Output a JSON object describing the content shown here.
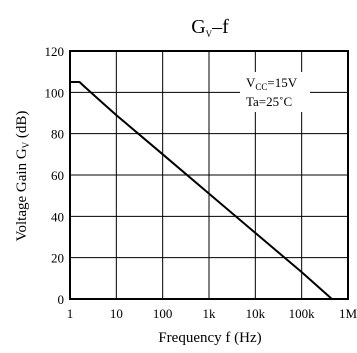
{
  "chart_data": {
    "type": "line",
    "title": {
      "main": "G",
      "sub": "V",
      "rest": "–f"
    },
    "xlabel": "Frequency  f (Hz)",
    "ylabel": {
      "pre": "Voltage Gain  G",
      "sub": "V",
      "post": " (dB)"
    },
    "x_scale": "log",
    "xlim": [
      1,
      1000000
    ],
    "ylim": [
      0,
      120
    ],
    "x_ticks": [
      {
        "value": 1,
        "label": "1"
      },
      {
        "value": 10,
        "label": "10"
      },
      {
        "value": 100,
        "label": "100"
      },
      {
        "value": 1000,
        "label": "1k"
      },
      {
        "value": 10000,
        "label": "10k"
      },
      {
        "value": 100000,
        "label": "100k"
      },
      {
        "value": 1000000,
        "label": "1M"
      }
    ],
    "y_ticks": [
      0,
      20,
      40,
      60,
      80,
      100,
      120
    ],
    "grid": true,
    "annotations": [
      {
        "pre": "V",
        "sub": "CC",
        "post": "=15V"
      },
      {
        "pre": "Ta=25˚C",
        "sub": "",
        "post": ""
      }
    ],
    "series": [
      {
        "x": [
          1,
          1.6,
          2,
          5,
          10,
          100,
          1000,
          10000,
          100000,
          450000
        ],
        "y": [
          105,
          105,
          103,
          95,
          89,
          70,
          51,
          32,
          13,
          0
        ]
      }
    ]
  }
}
